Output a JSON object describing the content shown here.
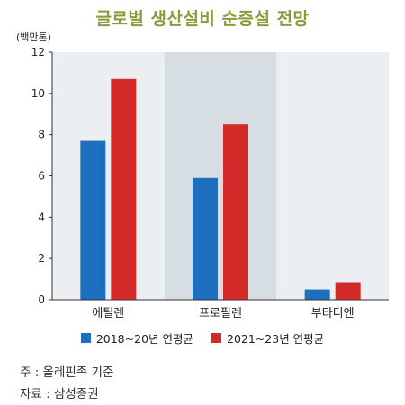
{
  "chart_data": {
    "type": "bar",
    "title": "글로벌 생산설비 순증설 전망",
    "unit_label": "(백만톤)",
    "categories": [
      "에틸렌",
      "프로필렌",
      "부타디엔"
    ],
    "series": [
      {
        "name": "2018~20년 연평균",
        "values": [
          7.7,
          5.9,
          0.5
        ],
        "color": "#1f6fc1"
      },
      {
        "name": "2021~23년 연평균",
        "values": [
          10.7,
          8.5,
          0.85
        ],
        "color": "#d42a2a"
      }
    ],
    "yticks": [
      "0",
      "2",
      "4",
      "6",
      "8",
      "10",
      "12"
    ],
    "ylim": [
      0,
      12
    ],
    "grid": false,
    "legend_position": "bottom",
    "plot_background": "#ebeff2",
    "highlight_background": "#d6dee3"
  },
  "notes": {
    "note": "주 : 올레핀족 기준",
    "source": "자료 : 삼성증권"
  }
}
